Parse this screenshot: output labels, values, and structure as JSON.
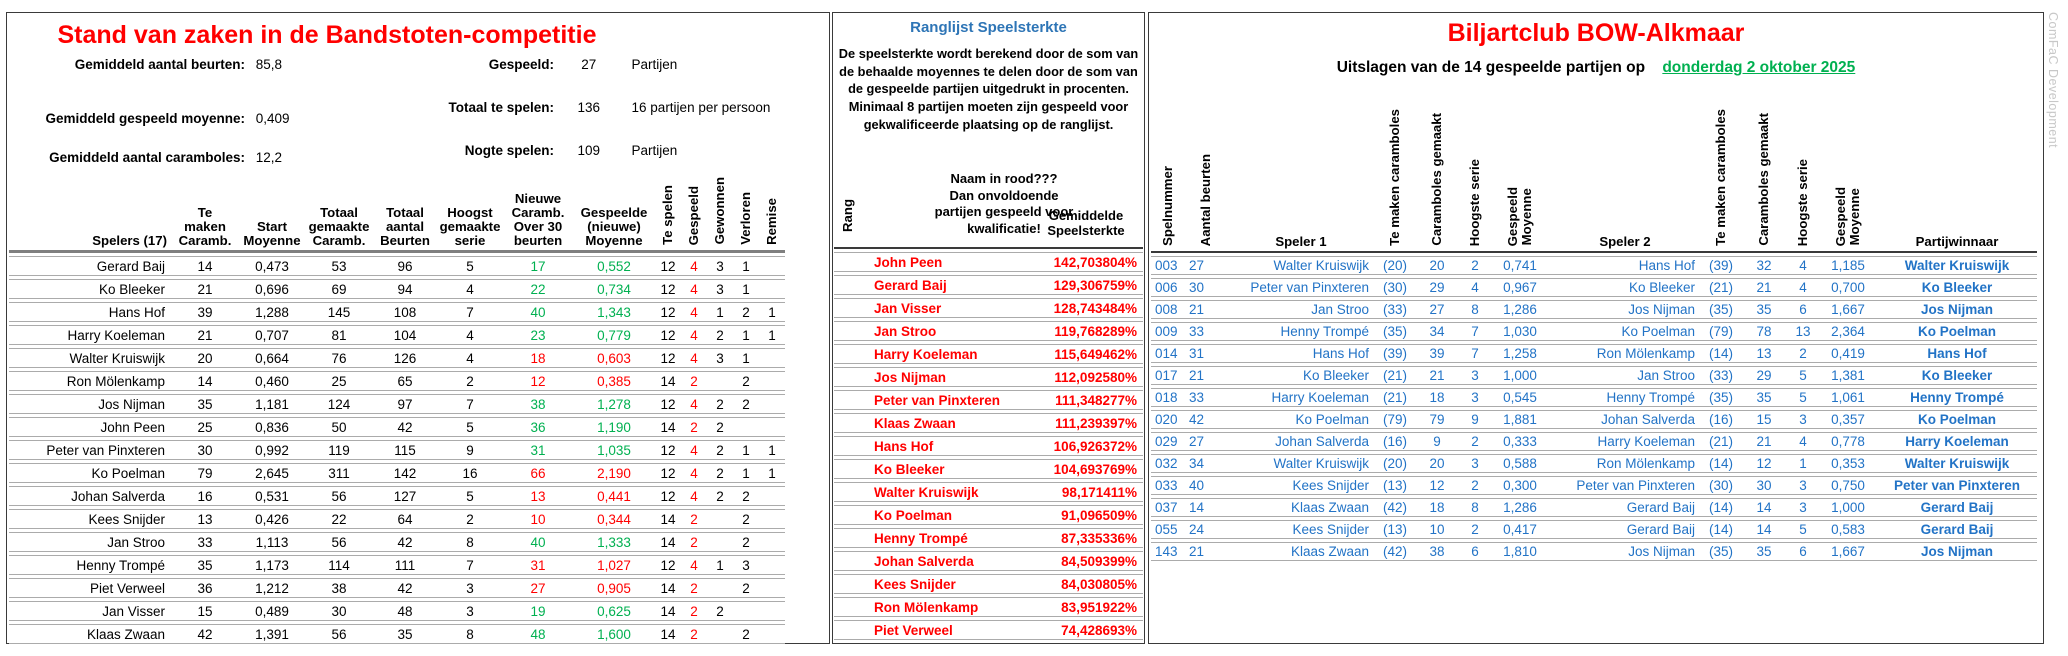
{
  "colors": {
    "accent_red": "#FF0000",
    "accent_green": "#00B050",
    "data_blue": "#2273C6",
    "title_blue": "#2E75B6"
  },
  "left": {
    "title": "Stand van zaken in de Bandstoten-competitie",
    "stats_left": [
      {
        "label": "Gemiddeld aantal beurten:",
        "value": "85,8"
      },
      {
        "label": "Gemiddeld gespeeld moyenne:",
        "value": "0,409"
      },
      {
        "label": "Gemiddeld aantal caramboles:",
        "value": "12,2"
      }
    ],
    "stats_right": [
      {
        "label": "Gespeeld:",
        "value": "27",
        "suffix": "Partijen"
      },
      {
        "label": "Totaal te spelen:",
        "value": "136",
        "suffix": "16 partijen per persoon"
      },
      {
        "label": "Nogte spelen:",
        "value": "109",
        "suffix": "Partijen"
      }
    ],
    "table": {
      "headers": [
        "Spelers (17)",
        "Te\nmaken\nCaramb.",
        "Start\nMoyenne",
        "Totaal\ngemaakte\nCaramb.",
        "Totaal\naantal\nBeurten",
        "Hoogst\ngemaakte\nserie",
        "Nieuwe\nCaramb.\nOver 30\nbeurten",
        "Gespeelde\n(nieuwe)\nMoyenne",
        "Te spelen",
        "Gespeeld",
        "Gewonnen",
        "Verloren",
        "Remise"
      ],
      "rows": [
        {
          "name": "Gerard Baij",
          "te_maken": "14",
          "start": "0,473",
          "tot_car": "53",
          "tot_beur": "96",
          "serie": "5",
          "nieuw": "17",
          "moy": "0,552",
          "trend": "green",
          "te_spelen": "12",
          "gespeeld": "4",
          "gew": "3",
          "verl": "1",
          "rem": ""
        },
        {
          "name": "Ko Bleeker",
          "te_maken": "21",
          "start": "0,696",
          "tot_car": "69",
          "tot_beur": "94",
          "serie": "4",
          "nieuw": "22",
          "moy": "0,734",
          "trend": "green",
          "te_spelen": "12",
          "gespeeld": "4",
          "gew": "3",
          "verl": "1",
          "rem": ""
        },
        {
          "name": "Hans Hof",
          "te_maken": "39",
          "start": "1,288",
          "tot_car": "145",
          "tot_beur": "108",
          "serie": "7",
          "nieuw": "40",
          "moy": "1,343",
          "trend": "green",
          "te_spelen": "12",
          "gespeeld": "4",
          "gew": "1",
          "verl": "2",
          "rem": "1"
        },
        {
          "name": "Harry Koeleman",
          "te_maken": "21",
          "start": "0,707",
          "tot_car": "81",
          "tot_beur": "104",
          "serie": "4",
          "nieuw": "23",
          "moy": "0,779",
          "trend": "green",
          "te_spelen": "12",
          "gespeeld": "4",
          "gew": "2",
          "verl": "1",
          "rem": "1"
        },
        {
          "name": "Walter Kruiswijk",
          "te_maken": "20",
          "start": "0,664",
          "tot_car": "76",
          "tot_beur": "126",
          "serie": "4",
          "nieuw": "18",
          "moy": "0,603",
          "trend": "red",
          "te_spelen": "12",
          "gespeeld": "4",
          "gew": "3",
          "verl": "1",
          "rem": ""
        },
        {
          "name": "Ron Mölenkamp",
          "te_maken": "14",
          "start": "0,460",
          "tot_car": "25",
          "tot_beur": "65",
          "serie": "2",
          "nieuw": "12",
          "moy": "0,385",
          "trend": "red",
          "te_spelen": "14",
          "gespeeld": "2",
          "gew": "",
          "verl": "2",
          "rem": ""
        },
        {
          "name": "Jos Nijman",
          "te_maken": "35",
          "start": "1,181",
          "tot_car": "124",
          "tot_beur": "97",
          "serie": "7",
          "nieuw": "38",
          "moy": "1,278",
          "trend": "green",
          "te_spelen": "12",
          "gespeeld": "4",
          "gew": "2",
          "verl": "2",
          "rem": ""
        },
        {
          "name": "John Peen",
          "te_maken": "25",
          "start": "0,836",
          "tot_car": "50",
          "tot_beur": "42",
          "serie": "5",
          "nieuw": "36",
          "moy": "1,190",
          "trend": "green",
          "te_spelen": "14",
          "gespeeld": "2",
          "gew": "2",
          "verl": "",
          "rem": ""
        },
        {
          "name": "Peter van Pinxteren",
          "te_maken": "30",
          "start": "0,992",
          "tot_car": "119",
          "tot_beur": "115",
          "serie": "9",
          "nieuw": "31",
          "moy": "1,035",
          "trend": "green",
          "te_spelen": "12",
          "gespeeld": "4",
          "gew": "2",
          "verl": "1",
          "rem": "1"
        },
        {
          "name": "Ko Poelman",
          "te_maken": "79",
          "start": "2,645",
          "tot_car": "311",
          "tot_beur": "142",
          "serie": "16",
          "nieuw": "66",
          "moy": "2,190",
          "trend": "red",
          "te_spelen": "12",
          "gespeeld": "4",
          "gew": "2",
          "verl": "1",
          "rem": "1"
        },
        {
          "name": "Johan Salverda",
          "te_maken": "16",
          "start": "0,531",
          "tot_car": "56",
          "tot_beur": "127",
          "serie": "5",
          "nieuw": "13",
          "moy": "0,441",
          "trend": "red",
          "te_spelen": "12",
          "gespeeld": "4",
          "gew": "2",
          "verl": "2",
          "rem": ""
        },
        {
          "name": "Kees Snijder",
          "te_maken": "13",
          "start": "0,426",
          "tot_car": "22",
          "tot_beur": "64",
          "serie": "2",
          "nieuw": "10",
          "moy": "0,344",
          "trend": "red",
          "te_spelen": "14",
          "gespeeld": "2",
          "gew": "",
          "verl": "2",
          "rem": ""
        },
        {
          "name": "Jan Stroo",
          "te_maken": "33",
          "start": "1,113",
          "tot_car": "56",
          "tot_beur": "42",
          "serie": "8",
          "nieuw": "40",
          "moy": "1,333",
          "trend": "green",
          "te_spelen": "14",
          "gespeeld": "2",
          "gew": "",
          "verl": "2",
          "rem": ""
        },
        {
          "name": "Henny Trompé",
          "te_maken": "35",
          "start": "1,173",
          "tot_car": "114",
          "tot_beur": "111",
          "serie": "7",
          "nieuw": "31",
          "moy": "1,027",
          "trend": "red",
          "te_spelen": "12",
          "gespeeld": "4",
          "gew": "1",
          "verl": "3",
          "rem": ""
        },
        {
          "name": "Piet Verweel",
          "te_maken": "36",
          "start": "1,212",
          "tot_car": "38",
          "tot_beur": "42",
          "serie": "3",
          "nieuw": "27",
          "moy": "0,905",
          "trend": "red",
          "te_spelen": "14",
          "gespeeld": "2",
          "gew": "",
          "verl": "2",
          "rem": ""
        },
        {
          "name": "Jan Visser",
          "te_maken": "15",
          "start": "0,489",
          "tot_car": "30",
          "tot_beur": "48",
          "serie": "3",
          "nieuw": "19",
          "moy": "0,625",
          "trend": "green",
          "te_spelen": "14",
          "gespeeld": "2",
          "gew": "2",
          "verl": "",
          "rem": ""
        },
        {
          "name": "Klaas Zwaan",
          "te_maken": "42",
          "start": "1,391",
          "tot_car": "56",
          "tot_beur": "35",
          "serie": "8",
          "nieuw": "48",
          "moy": "1,600",
          "trend": "green",
          "te_spelen": "14",
          "gespeeld": "2",
          "gew": "",
          "verl": "2",
          "rem": ""
        }
      ]
    }
  },
  "middle": {
    "title": "Ranglijst Speelsterkte",
    "description": "De speelsterkte wordt berekend door de som van\nde behaalde moyennes te delen door de som van\nde gespeelde partijen uitgedrukt in procenten.\nMinimaal 8 partijen moeten zijn gespeeld voor\ngekwalificeerde plaatsing op de ranglijst.",
    "note": "Naam in rood???\nDan onvoldoende\npartijen gespeeld voor\nkwalificatie!",
    "headers": {
      "rang": "Rang",
      "strength": "Gemiddelde\nSpeelsterkte"
    },
    "rows": [
      {
        "rang": "",
        "name": "John Peen",
        "pct": "142,703804%"
      },
      {
        "rang": "",
        "name": "Gerard Baij",
        "pct": "129,306759%"
      },
      {
        "rang": "",
        "name": "Jan Visser",
        "pct": "128,743484%"
      },
      {
        "rang": "",
        "name": "Jan Stroo",
        "pct": "119,768289%"
      },
      {
        "rang": "",
        "name": "Harry Koeleman",
        "pct": "115,649462%"
      },
      {
        "rang": "",
        "name": "Jos Nijman",
        "pct": "112,092580%"
      },
      {
        "rang": "",
        "name": "Peter van Pinxteren",
        "pct": "111,348277%"
      },
      {
        "rang": "",
        "name": "Klaas Zwaan",
        "pct": "111,239397%"
      },
      {
        "rang": "",
        "name": "Hans Hof",
        "pct": "106,926372%"
      },
      {
        "rang": "",
        "name": "Ko Bleeker",
        "pct": "104,693769%"
      },
      {
        "rang": "",
        "name": "Walter Kruiswijk",
        "pct": "98,171411%"
      },
      {
        "rang": "",
        "name": "Ko Poelman",
        "pct": "91,096509%"
      },
      {
        "rang": "",
        "name": "Henny Trompé",
        "pct": "87,335336%"
      },
      {
        "rang": "",
        "name": "Johan Salverda",
        "pct": "84,509399%"
      },
      {
        "rang": "",
        "name": "Kees Snijder",
        "pct": "84,030805%"
      },
      {
        "rang": "",
        "name": "Ron Mölenkamp",
        "pct": "83,951922%"
      },
      {
        "rang": "",
        "name": "Piet Verweel",
        "pct": "74,428693%"
      }
    ]
  },
  "right": {
    "title": "Biljartclub BOW-Alkmaar",
    "subtitle_prefix": "Uitslagen van de 14 gespeelde partijen op",
    "date": "donderdag 2 oktober 2025",
    "watermark": "ComFaC Development",
    "headers": [
      "Spelnummer",
      "Aantal beurten",
      "Speler 1",
      "Te maken caramboles",
      "Caramboles gemaakt",
      "Hoogste serie",
      "Gespeeld\nMoyenne",
      "Speler 2",
      "Te maken caramboles",
      "Caramboles gemaakt",
      "Hoogste serie",
      "Gespeeld\nMoyenne",
      "Partijwinnaar"
    ],
    "rows": [
      {
        "nr": "003",
        "beurten": "27",
        "p1": "Walter Kruiswijk",
        "p1_doel": "(20)",
        "p1_car": "20",
        "p1_serie": "2",
        "p1_moy": "0,741",
        "p2": "Hans Hof",
        "p2_doel": "(39)",
        "p2_car": "32",
        "p2_serie": "4",
        "p2_moy": "1,185",
        "win": "Walter Kruiswijk"
      },
      {
        "nr": "006",
        "beurten": "30",
        "p1": "Peter van Pinxteren",
        "p1_doel": "(30)",
        "p1_car": "29",
        "p1_serie": "4",
        "p1_moy": "0,967",
        "p2": "Ko Bleeker",
        "p2_doel": "(21)",
        "p2_car": "21",
        "p2_serie": "4",
        "p2_moy": "0,700",
        "win": "Ko Bleeker"
      },
      {
        "nr": "008",
        "beurten": "21",
        "p1": "Jan Stroo",
        "p1_doel": "(33)",
        "p1_car": "27",
        "p1_serie": "8",
        "p1_moy": "1,286",
        "p2": "Jos Nijman",
        "p2_doel": "(35)",
        "p2_car": "35",
        "p2_serie": "6",
        "p2_moy": "1,667",
        "win": "Jos Nijman"
      },
      {
        "nr": "009",
        "beurten": "33",
        "p1": "Henny Trompé",
        "p1_doel": "(35)",
        "p1_car": "34",
        "p1_serie": "7",
        "p1_moy": "1,030",
        "p2": "Ko Poelman",
        "p2_doel": "(79)",
        "p2_car": "78",
        "p2_serie": "13",
        "p2_moy": "2,364",
        "win": "Ko Poelman"
      },
      {
        "nr": "014",
        "beurten": "31",
        "p1": "Hans Hof",
        "p1_doel": "(39)",
        "p1_car": "39",
        "p1_serie": "7",
        "p1_moy": "1,258",
        "p2": "Ron Mölenkamp",
        "p2_doel": "(14)",
        "p2_car": "13",
        "p2_serie": "2",
        "p2_moy": "0,419",
        "win": "Hans Hof"
      },
      {
        "nr": "017",
        "beurten": "21",
        "p1": "Ko Bleeker",
        "p1_doel": "(21)",
        "p1_car": "21",
        "p1_serie": "3",
        "p1_moy": "1,000",
        "p2": "Jan Stroo",
        "p2_doel": "(33)",
        "p2_car": "29",
        "p2_serie": "5",
        "p2_moy": "1,381",
        "win": "Ko Bleeker"
      },
      {
        "nr": "018",
        "beurten": "33",
        "p1": "Harry Koeleman",
        "p1_doel": "(21)",
        "p1_car": "18",
        "p1_serie": "3",
        "p1_moy": "0,545",
        "p2": "Henny Trompé",
        "p2_doel": "(35)",
        "p2_car": "35",
        "p2_serie": "5",
        "p2_moy": "1,061",
        "win": "Henny Trompé"
      },
      {
        "nr": "020",
        "beurten": "42",
        "p1": "Ko Poelman",
        "p1_doel": "(79)",
        "p1_car": "79",
        "p1_serie": "9",
        "p1_moy": "1,881",
        "p2": "Johan Salverda",
        "p2_doel": "(16)",
        "p2_car": "15",
        "p2_serie": "3",
        "p2_moy": "0,357",
        "win": "Ko Poelman"
      },
      {
        "nr": "029",
        "beurten": "27",
        "p1": "Johan Salverda",
        "p1_doel": "(16)",
        "p1_car": "9",
        "p1_serie": "2",
        "p1_moy": "0,333",
        "p2": "Harry Koeleman",
        "p2_doel": "(21)",
        "p2_car": "21",
        "p2_serie": "4",
        "p2_moy": "0,778",
        "win": "Harry Koeleman"
      },
      {
        "nr": "032",
        "beurten": "34",
        "p1": "Walter Kruiswijk",
        "p1_doel": "(20)",
        "p1_car": "20",
        "p1_serie": "3",
        "p1_moy": "0,588",
        "p2": "Ron Mölenkamp",
        "p2_doel": "(14)",
        "p2_car": "12",
        "p2_serie": "1",
        "p2_moy": "0,353",
        "win": "Walter Kruiswijk"
      },
      {
        "nr": "033",
        "beurten": "40",
        "p1": "Kees Snijder",
        "p1_doel": "(13)",
        "p1_car": "12",
        "p1_serie": "2",
        "p1_moy": "0,300",
        "p2": "Peter van Pinxteren",
        "p2_doel": "(30)",
        "p2_car": "30",
        "p2_serie": "3",
        "p2_moy": "0,750",
        "win": "Peter van Pinxteren"
      },
      {
        "nr": "037",
        "beurten": "14",
        "p1": "Klaas Zwaan",
        "p1_doel": "(42)",
        "p1_car": "18",
        "p1_serie": "8",
        "p1_moy": "1,286",
        "p2": "Gerard Baij",
        "p2_doel": "(14)",
        "p2_car": "14",
        "p2_serie": "3",
        "p2_moy": "1,000",
        "win": "Gerard Baij"
      },
      {
        "nr": "055",
        "beurten": "24",
        "p1": "Kees Snijder",
        "p1_doel": "(13)",
        "p1_car": "10",
        "p1_serie": "2",
        "p1_moy": "0,417",
        "p2": "Gerard Baij",
        "p2_doel": "(14)",
        "p2_car": "14",
        "p2_serie": "5",
        "p2_moy": "0,583",
        "win": "Gerard Baij"
      },
      {
        "nr": "143",
        "beurten": "21",
        "p1": "Klaas Zwaan",
        "p1_doel": "(42)",
        "p1_car": "38",
        "p1_serie": "6",
        "p1_moy": "1,810",
        "p2": "Jos Nijman",
        "p2_doel": "(35)",
        "p2_car": "35",
        "p2_serie": "6",
        "p2_moy": "1,667",
        "win": "Jos Nijman"
      }
    ]
  }
}
